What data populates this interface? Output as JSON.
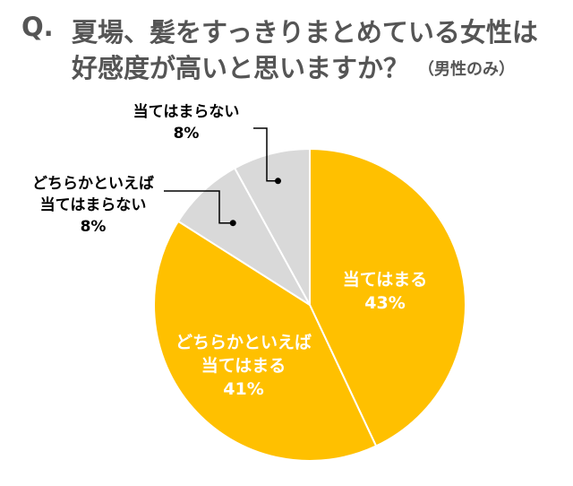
{
  "question": {
    "mark": "Q.",
    "line1": "夏場、髪をすっきりまとめている女性は",
    "line2": "好感度が高いと思いますか？",
    "note": "（男性のみ）"
  },
  "chart_data": {
    "type": "pie",
    "title": "夏場、髪をすっきりまとめている女性は好感度が高いと思いますか？（男性のみ）",
    "slices": [
      {
        "label": "当てはまる",
        "value": 43,
        "display": "43%",
        "color": "#FFC000",
        "label_color": "#FFFFFF"
      },
      {
        "label": "どちらかといえば当てはまる",
        "value": 41,
        "display": "41%",
        "color": "#FFC000",
        "label_color": "#FFFFFF"
      },
      {
        "label": "どちらかといえば当てはまらない",
        "value": 8,
        "display": "8%",
        "color": "#D9D9D9",
        "label_color": "#000000"
      },
      {
        "label": "当てはまらない",
        "value": 8,
        "display": "8%",
        "color": "#D9D9D9",
        "label_color": "#000000"
      }
    ],
    "start_angle": "12 o'clock",
    "direction": "clockwise"
  }
}
